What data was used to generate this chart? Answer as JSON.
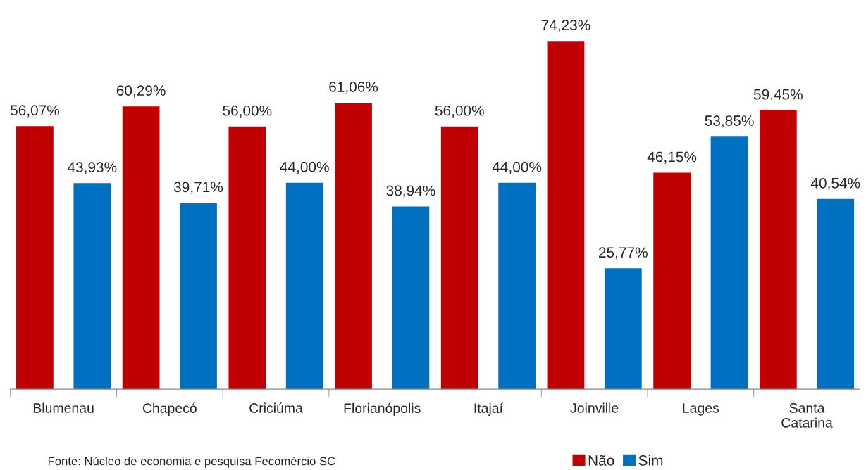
{
  "chart_data": {
    "type": "bar",
    "categories": [
      "Blumenau",
      "Chapecó",
      "Criciúma",
      "Florianópolis",
      "Itajaí",
      "Joinville",
      "Lages",
      "Santa Catarina"
    ],
    "series": [
      {
        "name": "Não",
        "color": "#c00000",
        "values": [
          56.07,
          60.29,
          56.0,
          61.06,
          56.0,
          74.23,
          46.15,
          59.45
        ],
        "value_labels": [
          "56,07%",
          "60,29%",
          "56,00%",
          "61,06%",
          "56,00%",
          "74,23%",
          "46,15%",
          "59,45%"
        ]
      },
      {
        "name": "Sim",
        "color": "#0070c0",
        "values": [
          43.93,
          39.71,
          44.0,
          38.94,
          44.0,
          25.77,
          53.85,
          40.54
        ],
        "value_labels": [
          "43,93%",
          "39,71%",
          "44,00%",
          "38,94%",
          "44,00%",
          "25,77%",
          "53,85%",
          "40,54%"
        ]
      }
    ],
    "annotations": [
      "Fonte: Núcleo de economia e pesquisa Fecomércio SC"
    ],
    "legend": "bottom right",
    "grid": false
  }
}
